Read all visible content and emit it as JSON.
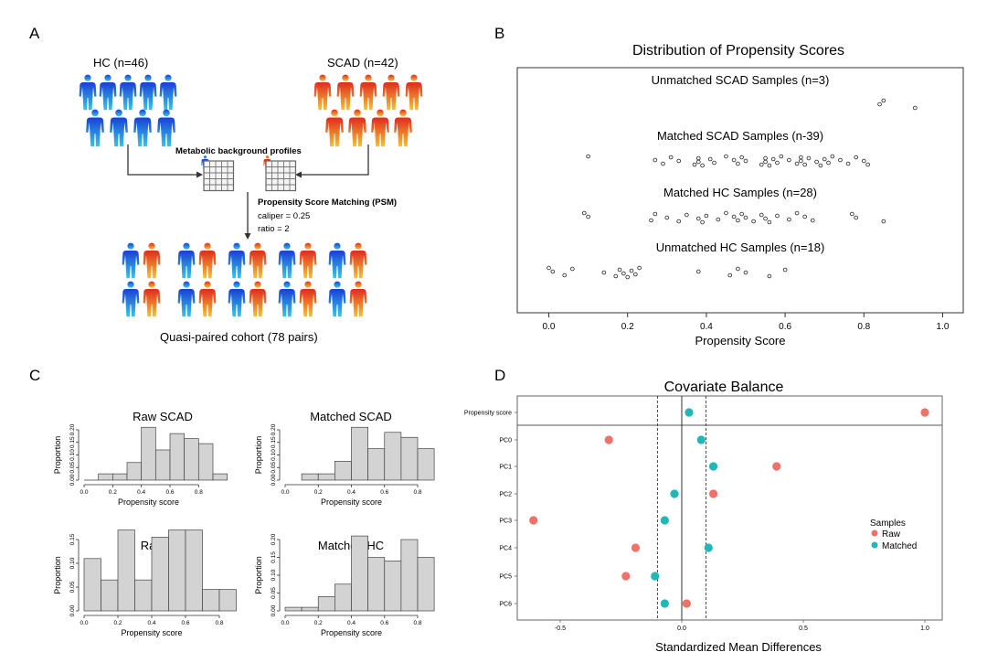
{
  "panels": {
    "a": {
      "letter": "A",
      "hc_label": "HC (n=46)",
      "scad_label": "SCAD (n=42)",
      "metabolic_label": "Metabolic background profiles",
      "psm_label": "Propensity Score Matching (PSM)",
      "caliper_label": "caliper = 0.25",
      "ratio_label": "ratio = 2",
      "cohort_label": "Quasi-paired cohort (78 pairs)"
    },
    "b": {
      "letter": "B"
    },
    "c": {
      "letter": "C"
    },
    "d": {
      "letter": "D"
    }
  },
  "colors": {
    "hc_top": "#1a3fd6",
    "hc_bottom": "#35c6e8",
    "scad_top": "#e02a20",
    "scad_bottom": "#f6c232",
    "raw": "#f07167",
    "matched": "#1fb8b6",
    "bar_fill": "#d3d3d3"
  },
  "chart_data": [
    {
      "id": "propensity_distribution",
      "type": "scatter",
      "title": "Distribution of Propensity Scores",
      "xlabel": "Propensity Score",
      "xlim": [
        -0.08,
        1.04
      ],
      "xticks": [
        "0.0",
        "0.2",
        "0.4",
        "0.6",
        "0.8",
        "1.0"
      ],
      "groups": [
        {
          "name": "Unmatched SCAD Samples (n=3)",
          "values": [
            0.85,
            0.84,
            0.93
          ]
        },
        {
          "name": "Matched SCAD Samples (n-39)",
          "values": [
            0.1,
            0.27,
            0.29,
            0.31,
            0.33,
            0.37,
            0.38,
            0.38,
            0.39,
            0.41,
            0.42,
            0.45,
            0.47,
            0.48,
            0.49,
            0.5,
            0.54,
            0.55,
            0.55,
            0.56,
            0.57,
            0.58,
            0.59,
            0.61,
            0.63,
            0.64,
            0.64,
            0.65,
            0.66,
            0.68,
            0.69,
            0.7,
            0.71,
            0.72,
            0.74,
            0.76,
            0.78,
            0.8,
            0.81
          ]
        },
        {
          "name": "Matched HC Samples (n=28)",
          "values": [
            0.09,
            0.1,
            0.26,
            0.27,
            0.3,
            0.33,
            0.35,
            0.38,
            0.39,
            0.4,
            0.43,
            0.45,
            0.47,
            0.48,
            0.49,
            0.5,
            0.52,
            0.54,
            0.55,
            0.56,
            0.58,
            0.61,
            0.63,
            0.65,
            0.67,
            0.77,
            0.78,
            0.85
          ]
        },
        {
          "name": "Unmatched HC Samples (n=18)",
          "values": [
            0.0,
            0.01,
            0.04,
            0.06,
            0.14,
            0.17,
            0.18,
            0.19,
            0.2,
            0.21,
            0.22,
            0.23,
            0.38,
            0.46,
            0.48,
            0.5,
            0.56,
            0.6
          ]
        }
      ]
    },
    {
      "id": "hist_raw_scad",
      "type": "bar",
      "title": "Raw SCAD",
      "xlabel": "Propensity score",
      "ylabel": "Proportion",
      "bin_edges": [
        0.0,
        0.1,
        0.2,
        0.3,
        0.4,
        0.5,
        0.6,
        0.7,
        0.8,
        0.9
      ],
      "values": [
        0.0,
        0.025,
        0.025,
        0.07,
        0.21,
        0.12,
        0.185,
        0.165,
        0.145,
        0.025
      ],
      "ylim": [
        0,
        0.2
      ],
      "yticks": [
        "0.00",
        "0.05",
        "0.10",
        "0.15",
        "0.20"
      ],
      "xlim": [
        0,
        0.9
      ],
      "xticks": [
        "0.0",
        "0.2",
        "0.4",
        "0.6",
        "0.8"
      ]
    },
    {
      "id": "hist_matched_scad",
      "type": "bar",
      "title": "Matched SCAD",
      "xlabel": "Propensity score",
      "ylabel": "Proportion",
      "bin_edges": [
        0.1,
        0.2,
        0.3,
        0.4,
        0.5,
        0.6,
        0.7,
        0.8
      ],
      "values": [
        0.025,
        0.025,
        0.075,
        0.21,
        0.125,
        0.19,
        0.17,
        0.125
      ],
      "ylim": [
        0,
        0.2
      ],
      "yticks": [
        "0.00",
        "0.05",
        "0.10",
        "0.15",
        "0.20"
      ],
      "xlim": [
        0,
        0.8
      ],
      "xticks": [
        "0.0",
        "0.2",
        "0.4",
        "0.6",
        "0.8"
      ]
    },
    {
      "id": "hist_raw_hc",
      "type": "bar",
      "title": "Raw HC",
      "xlabel": "Propensity score",
      "ylabel": "Proportion",
      "bin_edges": [
        0.0,
        0.1,
        0.2,
        0.3,
        0.4,
        0.5,
        0.6,
        0.7,
        0.8
      ],
      "values": [
        0.11,
        0.065,
        0.17,
        0.065,
        0.155,
        0.17,
        0.17,
        0.045,
        0.045
      ],
      "ylim": [
        0,
        0.15
      ],
      "yticks": [
        "0.00",
        "0.05",
        "0.10",
        "0.15"
      ],
      "xlim": [
        0,
        0.8
      ],
      "xticks": [
        "0.0",
        "0.2",
        "0.4",
        "0.6",
        "0.8"
      ]
    },
    {
      "id": "hist_matched_hc",
      "type": "bar",
      "title": "Matched HC",
      "xlabel": "Propensity score",
      "ylabel": "Proportion",
      "bin_edges": [
        0.0,
        0.1,
        0.2,
        0.3,
        0.4,
        0.5,
        0.6,
        0.7,
        0.8
      ],
      "values": [
        0.01,
        0.01,
        0.04,
        0.075,
        0.21,
        0.15,
        0.14,
        0.2,
        0.15
      ],
      "ylim": [
        0,
        0.2
      ],
      "yticks": [
        "0.00",
        "0.05",
        "0.10",
        "0.15",
        "0.20"
      ],
      "xlim": [
        0,
        0.8
      ],
      "xticks": [
        "0.0",
        "0.2",
        "0.4",
        "0.6",
        "0.8"
      ]
    },
    {
      "id": "covariate_balance",
      "type": "scatter",
      "title": "Covariate Balance",
      "xlabel": "Standardized Mean Differences",
      "xlim": [
        -0.62,
        1.04
      ],
      "xticks": [
        "-0.5",
        "0.0",
        "0.5",
        "1.0"
      ],
      "threshold": 0.1,
      "legend_title": "Samples",
      "covariates": [
        "Propensity score",
        "PC0",
        "PC1",
        "PC2",
        "PC3",
        "PC4",
        "PC5",
        "PC6"
      ],
      "series": [
        {
          "name": "Raw",
          "values": [
            1.0,
            -0.3,
            0.39,
            0.13,
            -0.61,
            -0.19,
            -0.23,
            0.02
          ]
        },
        {
          "name": "Matched",
          "values": [
            0.03,
            0.08,
            0.13,
            -0.03,
            -0.07,
            0.11,
            -0.11,
            -0.07
          ]
        }
      ]
    }
  ]
}
